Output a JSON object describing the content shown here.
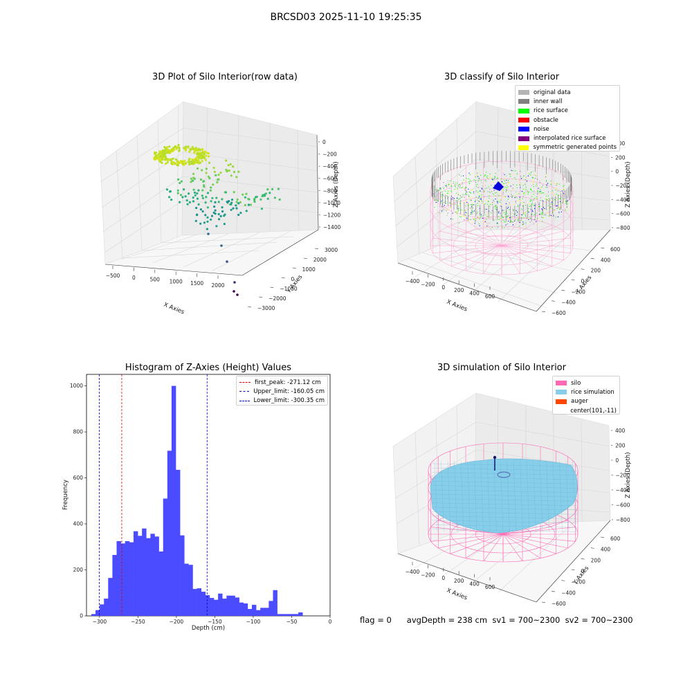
{
  "suptitle": "BRCSD03 2025-11-10 19:25:35",
  "footer": {
    "flag": "flag = 0",
    "avg_depth": "avgDepth = 238 cm",
    "sv1": "sv1 = 700~2300",
    "sv2": "sv2 = 700~2300"
  },
  "chart_data": [
    {
      "type": "scatter",
      "projection": "3d",
      "title": "3D Plot of Silo Interior(row data)",
      "xlabel": "X Axies",
      "ylabel": "Y Axies",
      "zlabel": "Z Axies (Depth)",
      "x_ticks": [
        -500,
        0,
        500,
        1000,
        1500,
        2000
      ],
      "y_ticks": [
        -3000,
        -2000,
        -1000,
        0,
        1000,
        2000,
        3000
      ],
      "y_tick_labels": [
        "−3000",
        "−2000",
        "−1000",
        "0",
        "1000",
        "2000",
        "3000"
      ],
      "z_ticks": [
        0,
        -200,
        -400,
        -600,
        -800,
        -1000,
        -1200,
        -1400
      ],
      "z_tick_labels": [
        "0",
        "−200",
        "−400",
        "−600",
        "−800",
        "−1000",
        "−1200",
        "−1400"
      ],
      "x_tick_labels": [
        "−500",
        "0",
        "500",
        "1000",
        "1500",
        "2000"
      ],
      "colormap": "viridis"
    },
    {
      "type": "scatter",
      "projection": "3d",
      "title": "3D classify of Silo Interior",
      "xlabel": "X Axies",
      "ylabel": "Y Axies",
      "zlabel": "Z Axies (Depth)",
      "x_tick_labels": [
        "−400",
        "−200",
        "0",
        "200",
        "400",
        "600"
      ],
      "y_tick_labels": [
        "−600",
        "−400",
        "−200",
        "0",
        "200",
        "400",
        "600"
      ],
      "z_tick_labels": [
        "400",
        "200",
        "0",
        "−200",
        "−400",
        "−600",
        "−800"
      ],
      "legend_position": "top-right",
      "legend": [
        {
          "label": "original data",
          "color": "#b4b4b4"
        },
        {
          "label": "inner wall",
          "color": "#808080"
        },
        {
          "label": "rice surface",
          "color": "#00ff00"
        },
        {
          "label": "obstacle",
          "color": "#ff0000"
        },
        {
          "label": "noise",
          "color": "#0000ff"
        },
        {
          "label": "interpolated rice surface",
          "color": "#800080"
        },
        {
          "label": "symmetric generated points",
          "color": "#ffff00"
        }
      ]
    },
    {
      "type": "bar",
      "title": "Histogram of Z-Axies (Height) Values",
      "xlabel": "Depth (cm)",
      "ylabel": "Frequency",
      "xlim": [
        -317,
        0
      ],
      "ylim": [
        0,
        1050
      ],
      "x_ticks": [
        -300,
        -250,
        -200,
        -150,
        -100,
        -50,
        0
      ],
      "x_tick_labels": [
        "−300",
        "−250",
        "−200",
        "−150",
        "−100",
        "−50",
        "0"
      ],
      "y_ticks": [
        0,
        200,
        400,
        600,
        800,
        1000
      ],
      "bar_color": "#4b4bff",
      "bin_width": 5.5,
      "bin_start": -310.8,
      "values": [
        8,
        25,
        50,
        75,
        165,
        265,
        325,
        315,
        325,
        320,
        368,
        348,
        380,
        338,
        357,
        345,
        280,
        510,
        718,
        1000,
        635,
        350,
        227,
        222,
        117,
        120,
        105,
        90,
        78,
        70,
        97,
        75,
        88,
        88,
        80,
        58,
        54,
        30,
        48,
        25,
        35,
        35,
        65,
        112,
        8,
        8,
        8,
        8,
        8,
        15
      ],
      "legend_position": "top-right",
      "vlines": [
        {
          "label": "first_peak: -271.12 cm",
          "x": -271.12,
          "color": "#dd0000"
        },
        {
          "label": "Upper_limit: -160.05 cm",
          "x": -160.05,
          "color": "#0000cc"
        },
        {
          "label": "Lower_limit: -300.35 cm",
          "x": -300.35,
          "color": "#0000cc"
        }
      ]
    },
    {
      "type": "area",
      "projection": "3d",
      "title": "3D simulation of Silo Interior",
      "xlabel": "X Axies",
      "ylabel": "Y Axies",
      "zlabel": "Z Axies (Depth)",
      "x_tick_labels": [
        "−400",
        "−200",
        "0",
        "200",
        "400",
        "600"
      ],
      "y_tick_labels": [
        "−600",
        "−400",
        "−200",
        "0",
        "200",
        "400",
        "600"
      ],
      "z_tick_labels": [
        "400",
        "200",
        "0",
        "−200",
        "−400",
        "−600",
        "−800"
      ],
      "legend_position": "top-right",
      "legend": [
        {
          "label": "silo",
          "color": "#ff69b4"
        },
        {
          "label": "rice simulation",
          "color": "#87ceeb"
        },
        {
          "label": "auger",
          "color": "#ff4500"
        },
        {
          "label": "center(101,-11)",
          "color": ""
        }
      ]
    }
  ]
}
